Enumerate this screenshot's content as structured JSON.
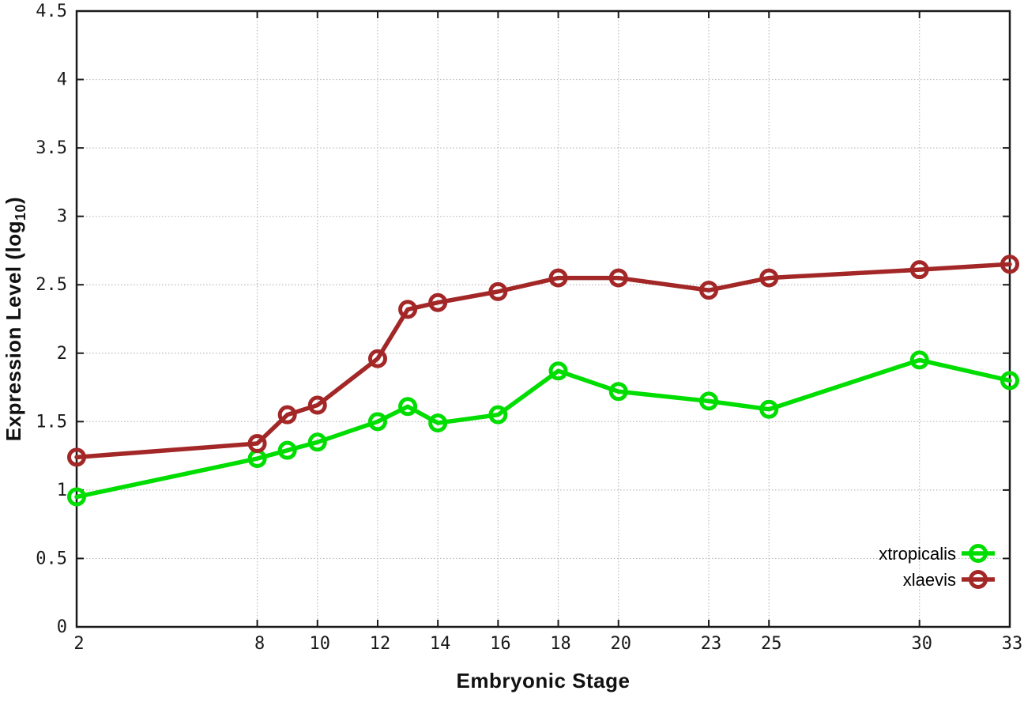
{
  "chart_data": {
    "type": "line",
    "title": "",
    "xlabel": "Embryonic Stage",
    "ylabel": {
      "prefix": "Expression Level (log",
      "sub": "10",
      "suffix": ")"
    },
    "x": [
      2,
      8,
      9,
      10,
      12,
      13,
      14,
      16,
      18,
      20,
      23,
      25,
      30,
      33
    ],
    "xticks": [
      2,
      8,
      10,
      12,
      14,
      16,
      18,
      20,
      23,
      25,
      30,
      33
    ],
    "yticks": [
      0,
      0.5,
      1,
      1.5,
      2,
      2.5,
      3,
      3.5,
      4,
      4.5
    ],
    "xlim": [
      2,
      33
    ],
    "ylim": [
      0,
      4.5
    ],
    "grid": true,
    "legend_position": "inside-bottom-right",
    "series": [
      {
        "name": "xtropicalis",
        "color": "#00dd00",
        "marker": "open-circle",
        "values": [
          0.95,
          1.23,
          1.29,
          1.35,
          1.5,
          1.61,
          1.49,
          1.55,
          1.87,
          1.72,
          1.65,
          1.59,
          1.95,
          1.8
        ]
      },
      {
        "name": "xlaevis",
        "color": "#a32727",
        "marker": "open-circle",
        "values": [
          1.24,
          1.34,
          1.55,
          1.62,
          1.96,
          2.32,
          2.37,
          2.45,
          2.55,
          2.55,
          2.46,
          2.55,
          2.61,
          2.65
        ]
      }
    ]
  },
  "style": {
    "grid_color": "#bbbbbb",
    "border_color": "#1a1a1a",
    "tick_label_color": "#1a1a1a",
    "legend_text_color": "#000000"
  }
}
